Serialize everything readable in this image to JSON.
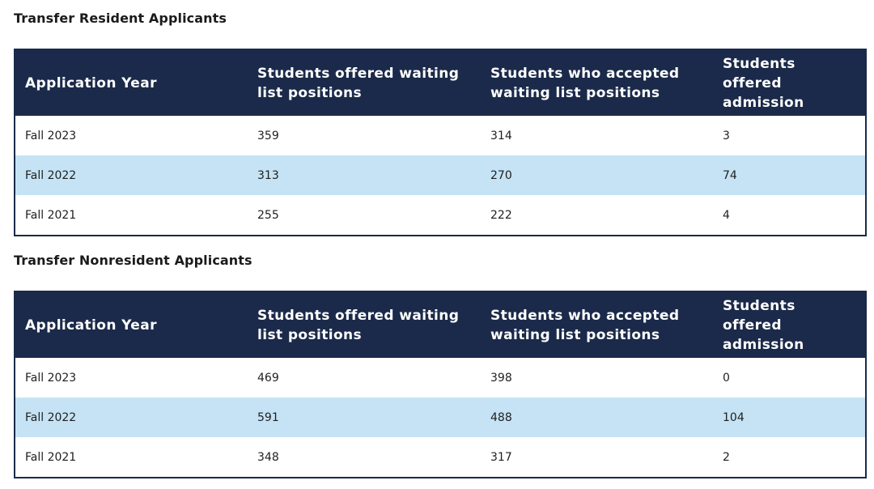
{
  "sections": [
    {
      "title": "Transfer Resident Applicants",
      "headers": [
        "Application Year",
        "Students offered waiting list positions",
        "Students who accepted waiting list positions",
        "Students offered admission"
      ],
      "rows": [
        [
          "Fall 2023",
          "359",
          "314",
          "3"
        ],
        [
          "Fall 2022",
          "313",
          "270",
          "74"
        ],
        [
          "Fall 2021",
          "255",
          "222",
          "4"
        ]
      ]
    },
    {
      "title": "Transfer Nonresident Applicants",
      "headers": [
        "Application Year",
        "Students offered waiting list positions",
        "Students who accepted waiting list positions",
        "Students offered admission"
      ],
      "rows": [
        [
          "Fall 2023",
          "469",
          "398",
          "0"
        ],
        [
          "Fall 2022",
          "591",
          "488",
          "104"
        ],
        [
          "Fall 2021",
          "348",
          "317",
          "2"
        ]
      ]
    }
  ],
  "colors": {
    "header_bg": "#1b2a4a",
    "alt_row_bg": "#c5e3f5"
  }
}
